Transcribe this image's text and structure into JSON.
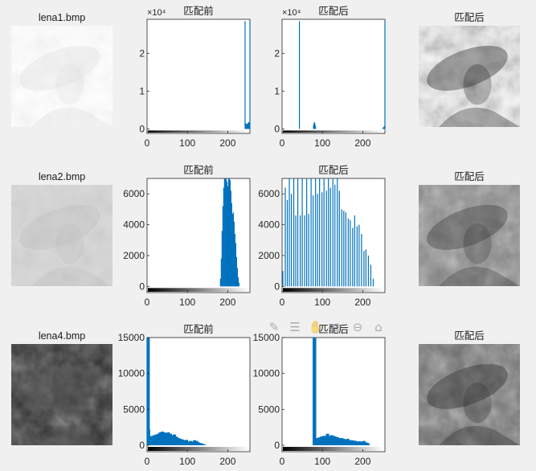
{
  "toolbar": {
    "icons": [
      "brush-icon",
      "datatip-icon",
      "pan-hand-icon",
      "zoom-in-icon",
      "zoom-out-icon",
      "home-icon"
    ],
    "glyphs": [
      "✎",
      "☰",
      "✋",
      "⊕",
      "⊖",
      "⌂"
    ]
  },
  "colors": {
    "bar": "#0072bd",
    "background": "#f0f0f0"
  },
  "chart_data": [
    {
      "type": "image",
      "title": "lena1.bmp",
      "style": "binary-light"
    },
    {
      "type": "bar",
      "title": "匹配前",
      "exponent_label": "×10⁴",
      "yticks": [
        "0",
        "1",
        "2"
      ],
      "xticks": [
        "0",
        "100",
        "200"
      ],
      "xlim": [
        0,
        255
      ],
      "ylim": [
        -0.12,
        2.9
      ],
      "x": [
        243,
        244,
        245,
        246,
        247,
        248,
        249,
        250,
        251,
        252,
        253,
        254,
        255
      ],
      "values": [
        2.85,
        0.15,
        0.12,
        0.14,
        0.1,
        0.12,
        0.13,
        0.15,
        0.16,
        0.18,
        0.17,
        0.16,
        2.85
      ]
    },
    {
      "type": "bar",
      "title": "匹配后",
      "exponent_label": "×10⁴",
      "yticks": [
        "0",
        "1",
        "2"
      ],
      "xticks": [
        "0",
        "100",
        "200"
      ],
      "xlim": [
        0,
        255
      ],
      "ylim": [
        -0.12,
        2.9
      ],
      "x": [
        43,
        78,
        79,
        80,
        81,
        82,
        83,
        250,
        251,
        252,
        253,
        254,
        255
      ],
      "values": [
        2.85,
        0.1,
        0.14,
        0.18,
        0.15,
        0.1,
        0.06,
        0.02,
        0.03,
        0.05,
        0.06,
        0.08,
        2.85
      ]
    },
    {
      "type": "image",
      "title": "匹配后",
      "style": "binary-dark"
    },
    {
      "type": "image",
      "title": "lena2.bmp",
      "style": "faded"
    },
    {
      "type": "bar",
      "title": "匹配前",
      "yticks": [
        "0",
        "2000",
        "4000",
        "6000"
      ],
      "xticks": [
        "0",
        "100",
        "200"
      ],
      "xlim": [
        0,
        255
      ],
      "ylim": [
        -400,
        7000
      ],
      "x": [
        182,
        184,
        186,
        188,
        190,
        192,
        194,
        196,
        198,
        200,
        202,
        204,
        206,
        208,
        210,
        212,
        214,
        216,
        218,
        220,
        222,
        224,
        226,
        228
      ],
      "values": [
        500,
        1800,
        3600,
        5200,
        6400,
        7000,
        7000,
        7000,
        6800,
        6500,
        7000,
        7000,
        6900,
        6200,
        5400,
        4700,
        4800,
        4200,
        3400,
        2800,
        1900,
        1200,
        600,
        250
      ]
    },
    {
      "type": "bar",
      "title": "匹配后",
      "yticks": [
        "0",
        "2000",
        "4000",
        "6000"
      ],
      "xticks": [
        "0",
        "100",
        "200"
      ],
      "xlim": [
        0,
        255
      ],
      "ylim": [
        -400,
        7000
      ],
      "x": [
        2,
        8,
        13,
        18,
        23,
        29,
        34,
        39,
        45,
        50,
        56,
        61,
        66,
        72,
        77,
        83,
        88,
        93,
        99,
        104,
        110,
        115,
        120,
        126,
        131,
        137,
        142,
        148,
        153,
        158,
        164,
        169,
        175,
        180,
        186,
        191,
        197,
        203,
        208,
        214,
        220,
        226
      ],
      "values": [
        1000,
        6400,
        5600,
        7000,
        6000,
        7000,
        4600,
        7000,
        4600,
        7000,
        4600,
        7000,
        4700,
        7000,
        5900,
        7000,
        6000,
        7000,
        6100,
        7000,
        6200,
        7000,
        6400,
        7000,
        6600,
        7000,
        6200,
        5000,
        4900,
        4800,
        4400,
        4300,
        3800,
        4600,
        3900,
        4000,
        3400,
        2300,
        2400,
        2000,
        1400,
        500
      ]
    },
    {
      "type": "image",
      "title": "匹配后",
      "style": "enhanced"
    },
    {
      "type": "image",
      "title": "lena4.bmp",
      "style": "dark"
    },
    {
      "type": "area",
      "title": "匹配前",
      "yticks": [
        "0",
        "5000",
        "10000",
        "15000"
      ],
      "xticks": [
        "0",
        "100",
        "200"
      ],
      "xlim": [
        0,
        255
      ],
      "ylim": [
        -900,
        15000
      ],
      "x": [
        0,
        1,
        2,
        4,
        6,
        8,
        10,
        15,
        20,
        25,
        30,
        35,
        40,
        45,
        50,
        55,
        60,
        65,
        70,
        75,
        80,
        85,
        90,
        95,
        100,
        105,
        110,
        115,
        120,
        125,
        130,
        135,
        140,
        145
      ],
      "values": [
        15000,
        2200,
        800,
        900,
        1000,
        1200,
        1300,
        1400,
        1500,
        1600,
        1800,
        1900,
        1800,
        1700,
        1800,
        1600,
        1400,
        1500,
        1200,
        1000,
        900,
        800,
        700,
        750,
        500,
        600,
        500,
        700,
        600,
        400,
        300,
        200,
        80,
        0
      ]
    },
    {
      "type": "area",
      "title": "匹配后",
      "yticks": [
        "0",
        "5000",
        "10000",
        "15000"
      ],
      "xticks": [
        "0",
        "100",
        "200"
      ],
      "xlim": [
        0,
        255
      ],
      "ylim": [
        -900,
        15000
      ],
      "x": [
        77,
        78,
        79,
        82,
        85,
        90,
        95,
        100,
        105,
        110,
        115,
        120,
        125,
        130,
        135,
        140,
        145,
        150,
        155,
        160,
        165,
        170,
        175,
        180,
        185,
        190,
        195,
        200,
        205,
        210,
        215
      ],
      "values": [
        15000,
        15000,
        700,
        900,
        1000,
        1100,
        1200,
        1300,
        1300,
        1600,
        1300,
        1400,
        1300,
        1200,
        1100,
        1000,
        1000,
        900,
        800,
        900,
        700,
        700,
        650,
        600,
        500,
        550,
        500,
        600,
        400,
        300,
        0
      ]
    },
    {
      "type": "image",
      "title": "匹配后",
      "style": "enhanced-dark"
    }
  ]
}
